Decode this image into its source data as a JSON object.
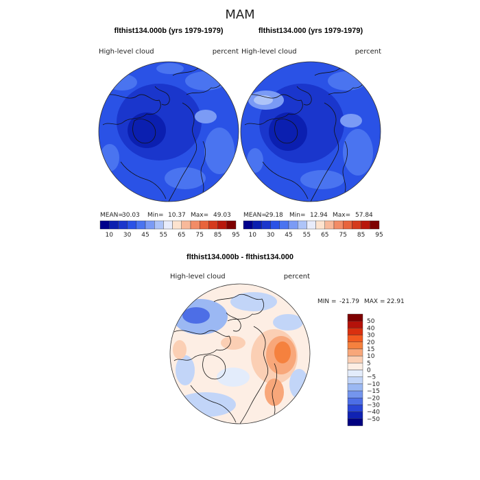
{
  "season": "MAM",
  "panels": [
    {
      "title": "flthist134.000b (yrs 1979-1979)",
      "field_label": "High-level cloud",
      "units_label": "percent",
      "stats": {
        "mean_label": "MEAN=",
        "mean": "30.03",
        "min_label": "Min=",
        "min": "10.37",
        "max_label": "Max=",
        "max": "49.03"
      }
    },
    {
      "title": "flthist134.000 (yrs 1979-1979)",
      "field_label": "High-level cloud",
      "units_label": "percent",
      "stats": {
        "mean_label": "MEAN=",
        "mean": "29.18",
        "min_label": "Min=",
        "min": "12.94",
        "max_label": "Max=",
        "max": "57.84"
      }
    }
  ],
  "diff": {
    "title": "flthist134.000b - flthist134.000",
    "field_label": "High-level cloud",
    "units_label": "percent",
    "min_label": "MIN =",
    "min": "-21.79",
    "max_label": "MAX =",
    "max": "22.91"
  },
  "chart_data": [
    {
      "type": "heatmap",
      "title": "flthist134.000b (yrs 1979-1979)",
      "projection": "north polar stereographic",
      "colorbar_ticks": [
        "10",
        "30",
        "45",
        "55",
        "65",
        "75",
        "85",
        "95"
      ],
      "mean": 30.03,
      "min": 10.37,
      "max": 49.03
    },
    {
      "type": "heatmap",
      "title": "flthist134.000 (yrs 1979-1979)",
      "projection": "north polar stereographic",
      "colorbar_ticks": [
        "10",
        "30",
        "45",
        "55",
        "65",
        "75",
        "85",
        "95"
      ],
      "mean": 29.18,
      "min": 12.94,
      "max": 57.84
    },
    {
      "type": "heatmap",
      "title": "flthist134.000b - flthist134.000",
      "projection": "north polar stereographic",
      "colorbar_ticks": [
        "50",
        "40",
        "30",
        "20",
        "15",
        "10",
        "5",
        "0",
        "−5",
        "−10",
        "−15",
        "−20",
        "−30",
        "−40",
        "−50"
      ],
      "min": -21.79,
      "max": 22.91
    }
  ],
  "colors": {
    "seq": [
      "#00008b",
      "#0b1fb0",
      "#1a36cc",
      "#2a52e6",
      "#4a74f0",
      "#7b9bf5",
      "#aec4f8",
      "#e8ecfb",
      "#fde3cf",
      "#f8b99a",
      "#f28c66",
      "#e8643c",
      "#d53a1c",
      "#b8170b",
      "#7e0000"
    ],
    "div": [
      "#7e0000",
      "#b5120a",
      "#d9300f",
      "#f25a20",
      "#f5813e",
      "#f8a77a",
      "#fbcfb4",
      "#fdeee4",
      "#e3ecfb",
      "#c2d5f8",
      "#9bb8f3",
      "#7495ed",
      "#4d6ee6",
      "#2a46d6",
      "#1022b3",
      "#000080"
    ]
  },
  "icons": {
    "coastline": "coastline-outline"
  }
}
